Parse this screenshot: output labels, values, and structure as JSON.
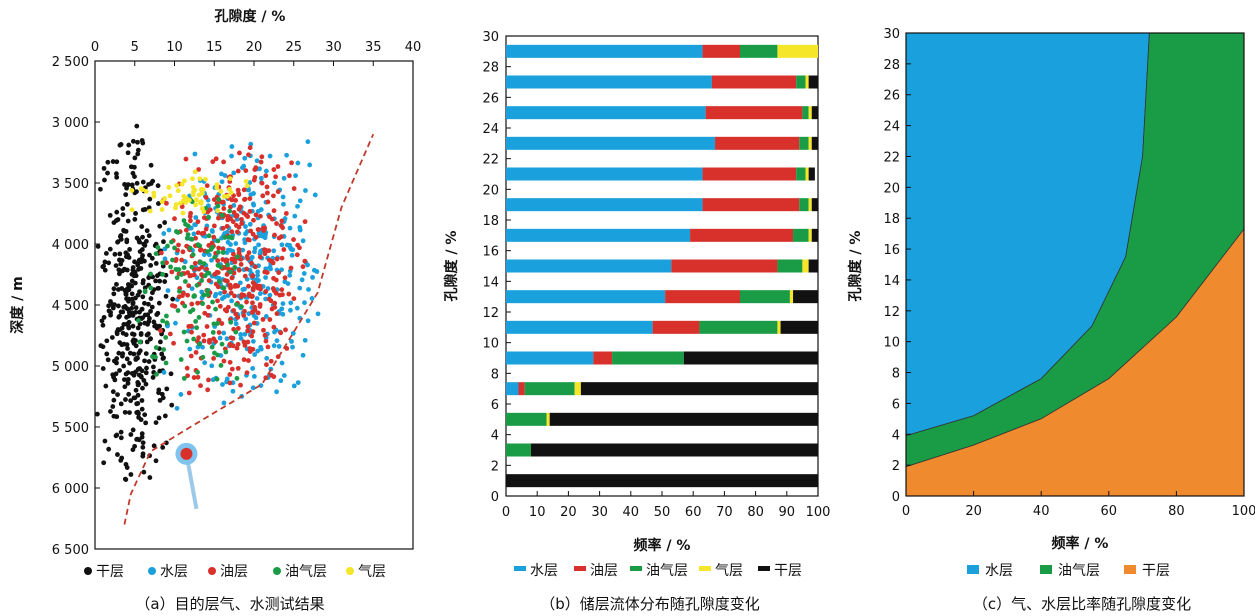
{
  "colors": {
    "water": "#1aa0dc",
    "oil": "#d8302a",
    "oilgas": "#1a9c46",
    "gas": "#f5e62a",
    "dry": "#111111",
    "dry_fill": "#ef8a2e",
    "dashed": "#c0392b"
  },
  "chart_data": [
    {
      "type": "scatter",
      "caption": "（a）目的层气、水测试结果",
      "xlabel": "孔隙度 / %",
      "ylabel": "深度 / m",
      "xlim": [
        0,
        40
      ],
      "ylim": [
        2500,
        6500
      ],
      "y_reversed": true,
      "x_ticks": [
        "0",
        "5",
        "10",
        "15",
        "20",
        "25",
        "30",
        "35",
        "40"
      ],
      "y_ticks": [
        "2 500",
        "3 000",
        "3 500",
        "4 000",
        "4 500",
        "5 000",
        "5 500",
        "6 000",
        "6 500"
      ],
      "legend": [
        "干层",
        "水层",
        "油层",
        "油气层",
        "气层"
      ],
      "legend_placement": "bottom",
      "series": [
        {
          "name": "干层",
          "cluster": {
            "x_range": [
              0,
              10
            ],
            "y_range": [
              3000,
              6100
            ],
            "approx_points": 420
          }
        },
        {
          "name": "水层",
          "cluster": {
            "x_range": [
              8,
              29
            ],
            "y_range": [
              3000,
              5400
            ],
            "approx_points": 380
          }
        },
        {
          "name": "油层",
          "cluster": {
            "x_range": [
              8,
              27
            ],
            "y_range": [
              3100,
              5300
            ],
            "approx_points": 400
          }
        },
        {
          "name": "油气层",
          "cluster": {
            "x_range": [
              5,
              20
            ],
            "y_range": [
              3400,
              5300
            ],
            "approx_points": 120
          }
        },
        {
          "name": "气层",
          "cluster": {
            "x_range": [
              4,
              21
            ],
            "y_range": [
              3400,
              3800
            ],
            "approx_points": 60
          }
        }
      ],
      "annotation": {
        "type": "dashed-boundary",
        "points": [
          [
            3.7,
            6300
          ],
          [
            4.5,
            6050
          ],
          [
            7,
            5700
          ],
          [
            12,
            5500
          ],
          [
            21,
            5150
          ],
          [
            28,
            4400
          ],
          [
            31,
            3700
          ],
          [
            35,
            3100
          ]
        ]
      },
      "marker": {
        "x": 11.5,
        "y": 5720
      }
    },
    {
      "type": "bar",
      "stacked": true,
      "orientation": "horizontal",
      "caption": "（b）储层流体分布随孔隙度变化",
      "xlabel": "频率 / %",
      "ylabel": "孔隙度 / %",
      "xlim": [
        0,
        100
      ],
      "ylim": [
        0,
        30
      ],
      "x_ticks": [
        "0",
        "10",
        "20",
        "30",
        "40",
        "50",
        "60",
        "70",
        "80",
        "90",
        "100"
      ],
      "y_ticks": [
        "0",
        "2",
        "4",
        "6",
        "8",
        "10",
        "12",
        "14",
        "16",
        "18",
        "20",
        "22",
        "24",
        "26",
        "28",
        "30"
      ],
      "legend": [
        "水层",
        "油层",
        "油气层",
        "气层",
        "干层"
      ],
      "legend_placement": "bottom",
      "categories": [
        1,
        3,
        5,
        7,
        9,
        11,
        13,
        15,
        17,
        19,
        21,
        23,
        25,
        27,
        29
      ],
      "series": [
        {
          "name": "水层",
          "values": [
            0,
            0,
            0,
            4,
            28,
            47,
            51,
            53,
            59,
            63,
            63,
            67,
            64,
            66,
            63
          ]
        },
        {
          "name": "油层",
          "values": [
            0,
            0,
            0,
            2,
            6,
            15,
            24,
            34,
            33,
            31,
            30,
            27,
            31,
            27,
            12
          ]
        },
        {
          "name": "油气层",
          "values": [
            0,
            8,
            13,
            16,
            23,
            25,
            16,
            8,
            5,
            3,
            3,
            3,
            2,
            3,
            12
          ]
        },
        {
          "name": "气层",
          "values": [
            0,
            0,
            1,
            2,
            0,
            1,
            1,
            2,
            1,
            1,
            1,
            1,
            1,
            1,
            13
          ]
        },
        {
          "name": "干层",
          "values": [
            100,
            92,
            86,
            76,
            43,
            12,
            8,
            3,
            2,
            2,
            2,
            2,
            2,
            3,
            0
          ]
        }
      ]
    },
    {
      "type": "area",
      "caption": "（c）气、水层比率随孔隙度变化",
      "xlabel": "频率 / %",
      "ylabel": "孔隙度 / %",
      "xlim": [
        0,
        100
      ],
      "ylim": [
        0,
        30
      ],
      "x_ticks": [
        "0",
        "20",
        "40",
        "60",
        "80",
        "100"
      ],
      "y_ticks": [
        "0",
        "2",
        "4",
        "6",
        "8",
        "10",
        "12",
        "14",
        "16",
        "18",
        "20",
        "22",
        "24",
        "26",
        "28",
        "30"
      ],
      "legend": [
        "水层",
        "油气层",
        "干层"
      ],
      "legend_placement": "bottom",
      "boundaries": [
        {
          "name": "水层/油气层",
          "points": [
            [
              0,
              3.9
            ],
            [
              20,
              5.2
            ],
            [
              40,
              7.6
            ],
            [
              55,
              11
            ],
            [
              65,
              15.5
            ],
            [
              70,
              22
            ],
            [
              72,
              30
            ]
          ]
        },
        {
          "name": "油气层/干层",
          "points": [
            [
              0,
              1.9
            ],
            [
              20,
              3.3
            ],
            [
              40,
              5
            ],
            [
              60,
              7.6
            ],
            [
              80,
              11.6
            ],
            [
              100,
              17.3
            ]
          ]
        }
      ]
    }
  ]
}
